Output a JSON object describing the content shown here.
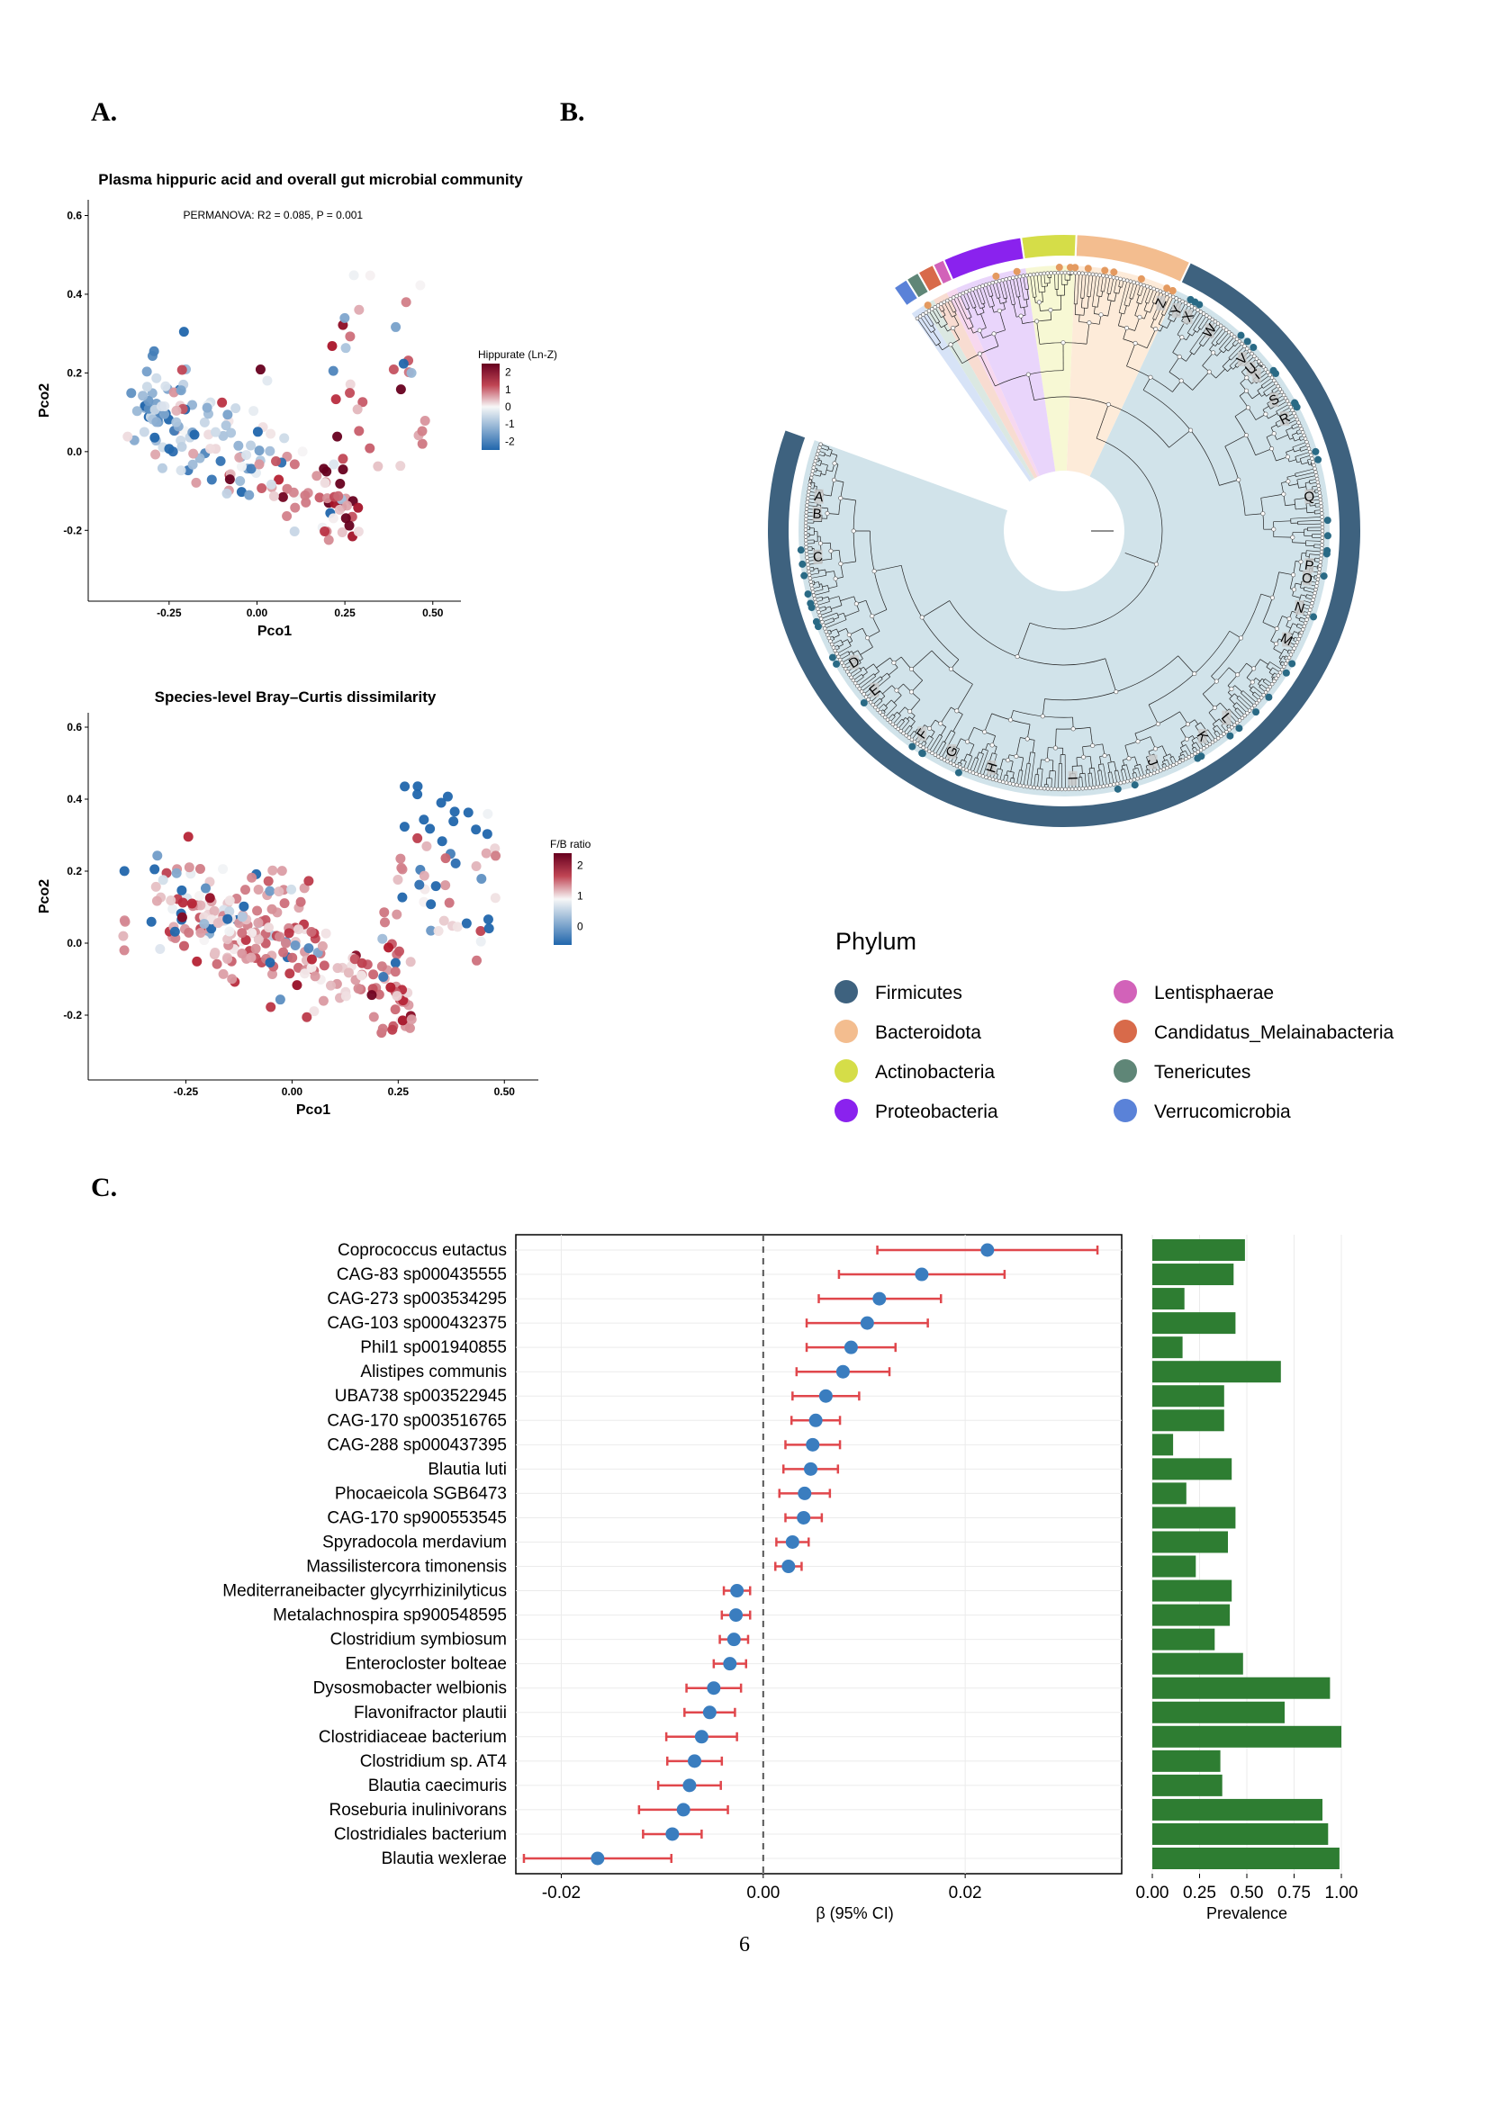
{
  "panels": {
    "a": "A.",
    "b": "B.",
    "c": "C."
  },
  "page_number": "6",
  "colors": {
    "blue_low": "#2166ac",
    "mid": "#f7f7f7",
    "red_high": "#67001f",
    "bar": "#2e7d32",
    "point": "#3a7dbf",
    "ci": "#e0474c"
  },
  "chart_data": [
    {
      "type": "scatter",
      "id": "pcoa-hippurate",
      "title": "Plasma hippuric acid and overall gut microbial community",
      "annotation": "PERMANOVA: R2 = 0.085, P = 0.001",
      "xlabel": "Pco1",
      "ylabel": "Pco2",
      "xlim": [
        -0.48,
        0.58
      ],
      "ylim": [
        -0.38,
        0.64
      ],
      "xticks": [
        -0.25,
        0.0,
        0.25,
        0.5
      ],
      "xtick_labels": [
        "-0.25",
        "0.00",
        "0.25",
        "0.50"
      ],
      "yticks": [
        -0.2,
        0.0,
        0.2,
        0.4,
        0.6
      ],
      "ytick_labels": [
        "-0.2",
        "0.0",
        "0.2",
        "0.4",
        "0.6"
      ],
      "legend": {
        "title": "Hippurate (Ln-Z)",
        "ticks": [
          2,
          1,
          0,
          -1,
          -2
        ],
        "tick_labels": [
          "2",
          "1",
          "0",
          "-1",
          "-2"
        ],
        "range": [
          -2.5,
          2.5
        ],
        "placement": "right"
      },
      "point_count": 200,
      "color_variable_range": [
        -2.5,
        2.5
      ]
    },
    {
      "type": "scatter",
      "id": "pcoa-fb",
      "title": "Species-level Bray–Curtis dissimilarity",
      "xlabel": "Pco1",
      "ylabel": "Pco2",
      "xlim": [
        -0.48,
        0.58
      ],
      "ylim": [
        -0.38,
        0.64
      ],
      "xticks": [
        -0.25,
        0.0,
        0.25,
        0.5
      ],
      "xtick_labels": [
        "-0.25",
        "0.00",
        "0.25",
        "0.50"
      ],
      "yticks": [
        -0.2,
        0.0,
        0.2,
        0.4,
        0.6
      ],
      "ytick_labels": [
        "-0.2",
        "0.0",
        "0.2",
        "0.4",
        "0.6"
      ],
      "legend": {
        "title": "F/B ratio",
        "ticks": [
          2,
          1,
          0
        ],
        "tick_labels": [
          "2",
          "1",
          "0"
        ],
        "range": [
          -0.6,
          2.4
        ],
        "placement": "right"
      },
      "point_count": 300,
      "color_variable_range": [
        -0.6,
        2.4
      ]
    },
    {
      "type": "forest",
      "id": "forest-beta",
      "xlabel": "β (95% CI)",
      "xlim": [
        -0.0245,
        0.0355
      ],
      "xticks": [
        -0.02,
        0.0,
        0.02
      ],
      "xtick_labels": [
        "-0.02",
        "0.00",
        "0.02"
      ],
      "reference_line": 0.0,
      "rows": [
        {
          "species": "Coprococcus eutactus",
          "beta": 0.0222,
          "lo": 0.0113,
          "hi": 0.0331,
          "prevalence": 0.49
        },
        {
          "species": "CAG-83 sp000435555",
          "beta": 0.0157,
          "lo": 0.0075,
          "hi": 0.0239,
          "prevalence": 0.43
        },
        {
          "species": "CAG-273 sp003534295",
          "beta": 0.0115,
          "lo": 0.0055,
          "hi": 0.0176,
          "prevalence": 0.17
        },
        {
          "species": "CAG-103 sp000432375",
          "beta": 0.0103,
          "lo": 0.0043,
          "hi": 0.0163,
          "prevalence": 0.44
        },
        {
          "species": "Phil1 sp001940855",
          "beta": 0.0087,
          "lo": 0.0043,
          "hi": 0.0131,
          "prevalence": 0.16
        },
        {
          "species": "Alistipes communis",
          "beta": 0.0079,
          "lo": 0.0033,
          "hi": 0.0125,
          "prevalence": 0.68
        },
        {
          "species": "UBA738 sp003522945",
          "beta": 0.0062,
          "lo": 0.0029,
          "hi": 0.0095,
          "prevalence": 0.38
        },
        {
          "species": "CAG-170 sp003516765",
          "beta": 0.0052,
          "lo": 0.0028,
          "hi": 0.0076,
          "prevalence": 0.38
        },
        {
          "species": "CAG-288 sp000437395",
          "beta": 0.0049,
          "lo": 0.0022,
          "hi": 0.0076,
          "prevalence": 0.11
        },
        {
          "species": "Blautia luti",
          "beta": 0.0047,
          "lo": 0.002,
          "hi": 0.0074,
          "prevalence": 0.42
        },
        {
          "species": "Phocaeicola SGB6473",
          "beta": 0.0041,
          "lo": 0.0016,
          "hi": 0.0066,
          "prevalence": 0.18
        },
        {
          "species": "CAG-170 sp900553545",
          "beta": 0.004,
          "lo": 0.0022,
          "hi": 0.0058,
          "prevalence": 0.44
        },
        {
          "species": "Spyradocola merdavium",
          "beta": 0.0029,
          "lo": 0.0013,
          "hi": 0.0045,
          "prevalence": 0.4
        },
        {
          "species": "Massilistercora timonensis",
          "beta": 0.0025,
          "lo": 0.0012,
          "hi": 0.0038,
          "prevalence": 0.23
        },
        {
          "species": "Mediterraneibacter glycyrrhizinilyticus",
          "beta": -0.0026,
          "lo": -0.0039,
          "hi": -0.0013,
          "prevalence": 0.42
        },
        {
          "species": "Metalachnospira sp900548595",
          "beta": -0.0027,
          "lo": -0.0041,
          "hi": -0.0013,
          "prevalence": 0.41
        },
        {
          "species": "Clostridium symbiosum",
          "beta": -0.0029,
          "lo": -0.0043,
          "hi": -0.0015,
          "prevalence": 0.33
        },
        {
          "species": "Enterocloster bolteae",
          "beta": -0.0033,
          "lo": -0.0049,
          "hi": -0.0017,
          "prevalence": 0.48
        },
        {
          "species": "Dysosmobacter welbionis",
          "beta": -0.0049,
          "lo": -0.0076,
          "hi": -0.0022,
          "prevalence": 0.94
        },
        {
          "species": "Flavonifractor plautii",
          "beta": -0.0053,
          "lo": -0.0078,
          "hi": -0.0028,
          "prevalence": 0.7
        },
        {
          "species": "Clostridiaceae bacterium",
          "beta": -0.0061,
          "lo": -0.0096,
          "hi": -0.0026,
          "prevalence": 1.0
        },
        {
          "species": "Clostridium sp. AT4",
          "beta": -0.0068,
          "lo": -0.0095,
          "hi": -0.0041,
          "prevalence": 0.36
        },
        {
          "species": "Blautia caecimuris",
          "beta": -0.0073,
          "lo": -0.0104,
          "hi": -0.0042,
          "prevalence": 0.37
        },
        {
          "species": "Roseburia inulinivorans",
          "beta": -0.0079,
          "lo": -0.0123,
          "hi": -0.0035,
          "prevalence": 0.9
        },
        {
          "species": "Clostridiales bacterium",
          "beta": -0.009,
          "lo": -0.0119,
          "hi": -0.0061,
          "prevalence": 0.93
        },
        {
          "species": "Blautia wexlerae",
          "beta": -0.0164,
          "lo": -0.0237,
          "hi": -0.0091,
          "prevalence": 0.99
        }
      ]
    },
    {
      "type": "bar",
      "id": "prevalence-bars",
      "xlabel": "Prevalence",
      "xlim": [
        0.0,
        1.0
      ],
      "xticks": [
        0.0,
        0.25,
        0.5,
        0.75,
        1.0
      ],
      "xtick_labels": [
        "0.00",
        "0.25",
        "0.50",
        "0.75",
        "1.00"
      ],
      "orientation": "horizontal",
      "values_from": "forest-beta.rows.prevalence"
    },
    {
      "type": "tree",
      "id": "phylo-tree",
      "layout": "circular fan",
      "legend_title": "Phylum",
      "legend_placement": "bottom",
      "phyla": [
        {
          "name": "Firmicutes",
          "color": "#3e627f",
          "share": 0.815
        },
        {
          "name": "Bacteroidota",
          "color": "#f3bd8f",
          "share": 0.07
        },
        {
          "name": "Actinobacteria",
          "color": "#d5dd48",
          "share": 0.033
        },
        {
          "name": "Proteobacteria",
          "color": "#8a22ee",
          "share": 0.048
        },
        {
          "name": "Lentisphaerae",
          "color": "#d262b9",
          "share": 0.007
        },
        {
          "name": "Candidatus_Melainabacteria",
          "color": "#d86a4a",
          "share": 0.01
        },
        {
          "name": "Tenericutes",
          "color": "#5f8677",
          "share": 0.008
        },
        {
          "name": "Verrucomicrobia",
          "color": "#5a82d8",
          "share": 0.009
        }
      ],
      "clade_labels": [
        "A",
        "B",
        "C",
        "D",
        "E",
        "F",
        "G",
        "H",
        "I",
        "J",
        "K",
        "L",
        "M",
        "N",
        "O",
        "P",
        "Q",
        "R",
        "S",
        "T",
        "U",
        "V",
        "W",
        "X",
        "Y",
        "Z"
      ]
    }
  ]
}
